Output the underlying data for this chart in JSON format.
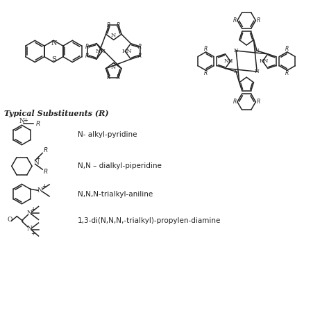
{
  "bg_color": "#ffffff",
  "line_color": "#222222",
  "line_width": 1.1,
  "typical_substituents_text": "Typical Substituents (R)",
  "substituent_labels": [
    "N- alkyl-pyridine",
    "N,N – dialkyl-piperidine",
    "N,N,N-trialkyl-aniline",
    "1,3-di(N,N,N,-trialkyl)-propylen-diamine"
  ],
  "figsize": [
    4.74,
    4.74
  ],
  "dpi": 100,
  "xlim": [
    0,
    10
  ],
  "ylim": [
    0,
    10
  ]
}
